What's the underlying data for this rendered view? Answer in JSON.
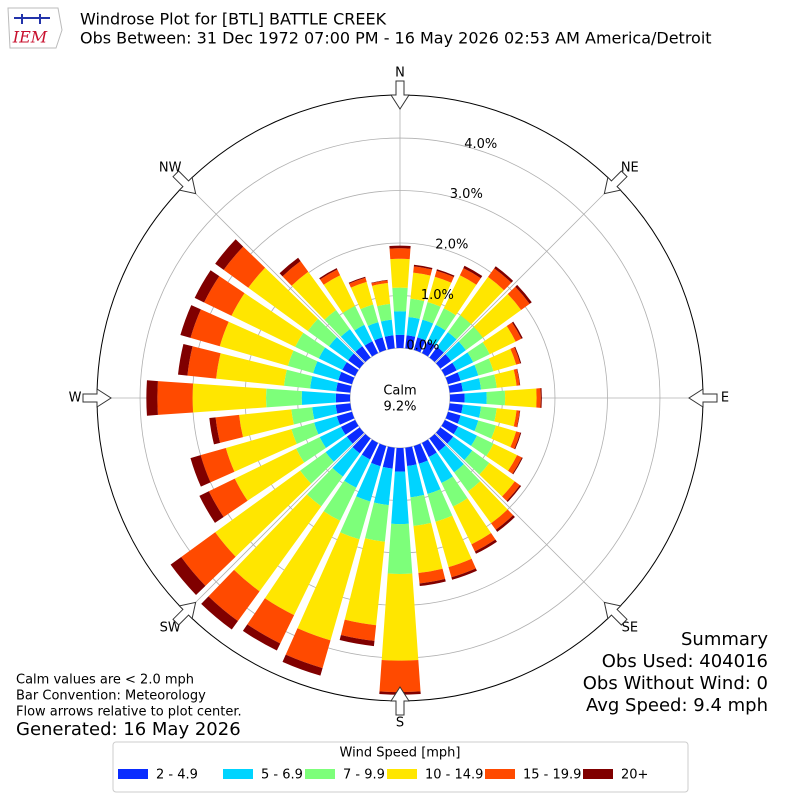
{
  "chart_data": {
    "type": "windrose",
    "title": "Windrose Plot for [BTL] BATTLE CREEK",
    "subtitle": "Obs Between: 31 Dec 1972 07:00 PM - 16 May 2026 02:53 AM America/Detroit",
    "logo_text": "IEM",
    "calm_label": "Calm",
    "calm_text": "9.2%",
    "direction_labels": [
      "N",
      "NE",
      "E",
      "SE",
      "S",
      "SW",
      "W",
      "NW"
    ],
    "x": [
      0,
      10,
      20,
      30,
      40,
      50,
      60,
      70,
      80,
      90,
      100,
      110,
      120,
      130,
      140,
      150,
      160,
      170,
      180,
      190,
      200,
      210,
      220,
      230,
      240,
      250,
      260,
      270,
      280,
      290,
      300,
      310,
      320,
      330,
      340,
      350
    ],
    "ylim": [
      0,
      4.82
    ],
    "yticks": [
      {
        "value": 0,
        "label": "0.0%"
      },
      {
        "value": 1,
        "label": "1.0%"
      },
      {
        "value": 2,
        "label": "2.0%"
      },
      {
        "value": 3,
        "label": "3.0%"
      },
      {
        "value": 4,
        "label": "4.0%"
      }
    ],
    "grid": true,
    "legend_title": "Wind Speed [mph]",
    "series": [
      {
        "name": "2 - 4.9",
        "color": "#0a2cff",
        "values": [
          0.25,
          0.25,
          0.25,
          0.25,
          0.25,
          0.25,
          0.25,
          0.25,
          0.25,
          0.28,
          0.25,
          0.25,
          0.28,
          0.3,
          0.3,
          0.3,
          0.35,
          0.35,
          0.45,
          0.4,
          0.4,
          0.35,
          0.35,
          0.3,
          0.3,
          0.3,
          0.28,
          0.27,
          0.27,
          0.27,
          0.27,
          0.27,
          0.27,
          0.25,
          0.25,
          0.25
        ]
      },
      {
        "name": "5 - 6.9",
        "color": "#00d4ff",
        "values": [
          0.45,
          0.35,
          0.35,
          0.35,
          0.35,
          0.35,
          0.35,
          0.35,
          0.35,
          0.42,
          0.35,
          0.35,
          0.4,
          0.45,
          0.5,
          0.55,
          0.6,
          0.6,
          1.0,
          0.7,
          0.7,
          0.6,
          0.55,
          0.5,
          0.45,
          0.45,
          0.45,
          0.65,
          0.5,
          0.5,
          0.5,
          0.45,
          0.4,
          0.35,
          0.3,
          0.3
        ]
      },
      {
        "name": "7 - 9.9",
        "color": "#7dff7a",
        "values": [
          0.45,
          0.35,
          0.35,
          0.35,
          0.4,
          0.4,
          0.35,
          0.3,
          0.3,
          0.35,
          0.3,
          0.35,
          0.35,
          0.4,
          0.45,
          0.5,
          0.55,
          0.55,
          0.95,
          0.7,
          0.75,
          0.7,
          0.7,
          0.6,
          0.5,
          0.45,
          0.4,
          0.68,
          0.5,
          0.5,
          0.5,
          0.5,
          0.45,
          0.4,
          0.35,
          0.3
        ]
      },
      {
        "name": "10 - 14.9",
        "color": "#ffe600",
        "values": [
          0.55,
          0.5,
          0.5,
          0.7,
          0.9,
          0.9,
          0.55,
          0.45,
          0.38,
          0.6,
          0.38,
          0.4,
          0.5,
          0.6,
          0.75,
          0.8,
          0.9,
          0.9,
          1.65,
          1.6,
          2.0,
          2.0,
          2.0,
          2.0,
          1.3,
          1.3,
          1.0,
          1.4,
          1.3,
          1.35,
          1.35,
          1.4,
          0.9,
          0.65,
          0.45,
          0.4
        ]
      },
      {
        "name": "15 - 19.9",
        "color": "#ff4a00",
        "values": [
          0.2,
          0.12,
          0.12,
          0.15,
          0.2,
          0.2,
          0.12,
          0.08,
          0.06,
          0.08,
          0.06,
          0.08,
          0.1,
          0.12,
          0.15,
          0.15,
          0.2,
          0.2,
          0.6,
          0.3,
          0.55,
          0.6,
          0.7,
          0.8,
          0.55,
          0.5,
          0.45,
          0.67,
          0.55,
          0.58,
          0.58,
          0.58,
          0.25,
          0.12,
          0.08,
          0.05
        ]
      },
      {
        "name": "20+",
        "color": "#800000",
        "values": [
          0.05,
          0.03,
          0.03,
          0.05,
          0.05,
          0.05,
          0.03,
          0.02,
          0.01,
          0.02,
          0.01,
          0.02,
          0.02,
          0.03,
          0.05,
          0.05,
          0.05,
          0.05,
          0.05,
          0.1,
          0.15,
          0.15,
          0.2,
          0.25,
          0.2,
          0.2,
          0.12,
          0.21,
          0.18,
          0.2,
          0.2,
          0.2,
          0.08,
          0.03,
          0.02,
          0.01
        ]
      }
    ],
    "notes": [
      "Calm values are < 2.0 mph",
      "Bar Convention: Meteorology",
      "Flow arrows relative to plot center."
    ],
    "generated": "Generated: 16 May 2026",
    "summary": [
      "Summary",
      "Obs Used: 404016",
      "Obs Without Wind: 0",
      "Avg Speed: 9.4 mph"
    ]
  }
}
